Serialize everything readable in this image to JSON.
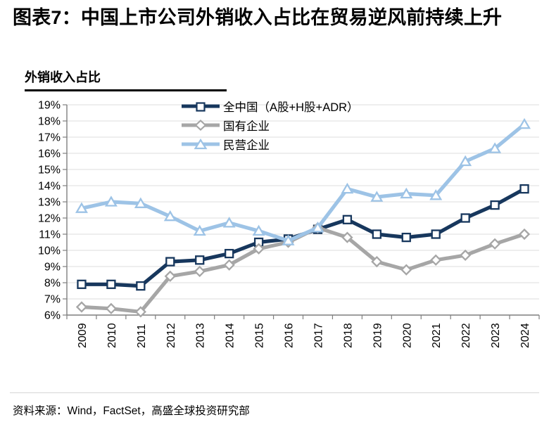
{
  "page": {
    "title": "图表7：中国上市公司外销收入占比在贸易逆风前持续上升",
    "subtitle": "外销收入占比",
    "source_note": "资料来源：Wind，FactSet，高盛全球投资研究部"
  },
  "colors": {
    "all_china": "#17375d",
    "soe": "#a6a6a6",
    "private": "#9dc3e6",
    "gridline": "#dcdcdc",
    "axis": "#7f7f7f",
    "text": "#000000"
  },
  "chart_data": {
    "type": "line",
    "title": "外销收入占比",
    "categories": [
      "2009",
      "2010",
      "2011",
      "2012",
      "2013",
      "2014",
      "2015",
      "2016",
      "2017",
      "2018",
      "2019",
      "2020",
      "2021",
      "2022",
      "2023",
      "2024"
    ],
    "series": [
      {
        "key": "all-china",
        "name": "全中国（A股+H股+ADR）",
        "marker": "square",
        "color": "#17375d",
        "values": [
          7.9,
          7.9,
          7.8,
          9.3,
          9.4,
          9.8,
          10.5,
          10.7,
          11.3,
          11.9,
          11.0,
          10.8,
          11.0,
          12.0,
          12.8,
          13.8
        ]
      },
      {
        "key": "soe",
        "name": "国有企业",
        "marker": "diamond",
        "color": "#a6a6a6",
        "values": [
          6.5,
          6.4,
          6.2,
          8.4,
          8.7,
          9.1,
          10.1,
          10.5,
          11.4,
          10.8,
          9.3,
          8.8,
          9.4,
          9.7,
          10.4,
          11.0
        ]
      },
      {
        "key": "private",
        "name": "民营企业",
        "marker": "triangle",
        "color": "#9dc3e6",
        "values": [
          12.6,
          13.0,
          12.9,
          12.1,
          11.2,
          11.7,
          11.2,
          10.6,
          11.4,
          13.8,
          13.3,
          13.5,
          13.4,
          15.5,
          16.3,
          17.8
        ]
      }
    ],
    "ylim": [
      6,
      19
    ],
    "y_tick_step": 1,
    "y_tick_labels": [
      "6%",
      "7%",
      "8%",
      "9%",
      "10%",
      "11%",
      "12%",
      "13%",
      "14%",
      "15%",
      "16%",
      "17%",
      "18%",
      "19%"
    ],
    "grid": true,
    "legend_position": "top-inside",
    "draw_order": [
      0,
      1,
      2
    ]
  }
}
